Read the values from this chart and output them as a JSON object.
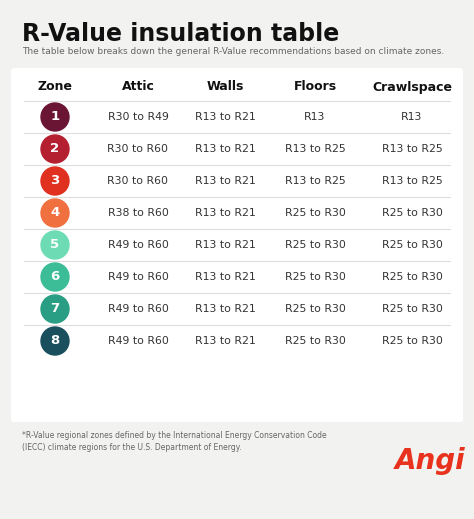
{
  "title": "R-Value insulation table",
  "subtitle": "The table below breaks down the general R-Value recommendations based on climate zones.",
  "footer": "*R-Value regional zones defined by the International Energy Conservation Code\n(IECC) climate regions for the U.S. Department of Energy.",
  "bg_color": "#f2f2f0",
  "table_bg": "#ffffff",
  "header": [
    "Zone",
    "Attic",
    "Walls",
    "Floors",
    "Crawlspace"
  ],
  "rows": [
    {
      "zone": "1",
      "attic": "R30 to R49",
      "walls": "R13 to R21",
      "floors": "R13",
      "crawlspace": "R13",
      "color": "#6b1535"
    },
    {
      "zone": "2",
      "attic": "R30 to R60",
      "walls": "R13 to R21",
      "floors": "R13 to R25",
      "crawlspace": "R13 to R25",
      "color": "#b52030"
    },
    {
      "zone": "3",
      "attic": "R30 to R60",
      "walls": "R13 to R21",
      "floors": "R13 to R25",
      "crawlspace": "R13 to R25",
      "color": "#e03020"
    },
    {
      "zone": "4",
      "attic": "R38 to R60",
      "walls": "R13 to R21",
      "floors": "R25 to R30",
      "crawlspace": "R25 to R30",
      "color": "#f07040"
    },
    {
      "zone": "5",
      "attic": "R49 to R60",
      "walls": "R13 to R21",
      "floors": "R25 to R30",
      "crawlspace": "R25 to R30",
      "color": "#6ddcb4"
    },
    {
      "zone": "6",
      "attic": "R49 to R60",
      "walls": "R13 to R21",
      "floors": "R25 to R30",
      "crawlspace": "R25 to R30",
      "color": "#3cbd98"
    },
    {
      "zone": "7",
      "attic": "R49 to R60",
      "walls": "R13 to R21",
      "floors": "R25 to R30",
      "crawlspace": "R25 to R30",
      "color": "#2a9e84"
    },
    {
      "zone": "8",
      "attic": "R49 to R60",
      "walls": "R13 to R21",
      "floors": "R25 to R30",
      "crawlspace": "R25 to R30",
      "color": "#1a4f5e"
    }
  ],
  "title_color": "#111111",
  "subtitle_color": "#666666",
  "header_color": "#111111",
  "cell_color": "#333333",
  "angi_color": "#e8321e",
  "divider_color": "#dddddd"
}
